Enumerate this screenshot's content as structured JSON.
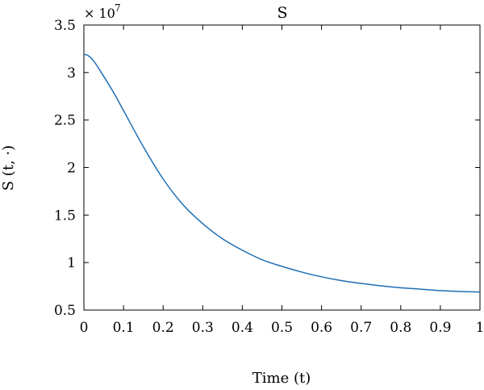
{
  "chart_data": {
    "type": "line",
    "title": "S",
    "xlabel": "Time (t)",
    "ylabel": "S (t, ·)",
    "y_multiplier_base": "× 10",
    "y_multiplier_exp": "7",
    "xlim": [
      0,
      1
    ],
    "ylim": [
      0.5,
      3.5
    ],
    "grid": false,
    "xticks": [
      0,
      0.1,
      0.2,
      0.3,
      0.4,
      0.5,
      0.6,
      0.7,
      0.8,
      0.9,
      1
    ],
    "xtick_labels": [
      "0",
      "0.1",
      "0.2",
      "0.3",
      "0.4",
      "0.5",
      "0.6",
      "0.7",
      "0.8",
      "0.9",
      "1"
    ],
    "yticks": [
      0.5,
      1,
      1.5,
      2,
      2.5,
      3,
      3.5
    ],
    "ytick_labels": [
      "0.5",
      "1",
      "1.5",
      "2",
      "2.5",
      "3",
      "3.5"
    ],
    "series": [
      {
        "color": "#1f6fb5",
        "x": [
          0,
          0.01,
          0.025,
          0.05,
          0.075,
          0.1,
          0.15,
          0.2,
          0.25,
          0.3,
          0.35,
          0.4,
          0.45,
          0.5,
          0.55,
          0.6,
          0.65,
          0.7,
          0.75,
          0.8,
          0.85,
          0.9,
          0.95,
          1
        ],
        "y": [
          3.19,
          3.18,
          3.12,
          2.96,
          2.79,
          2.6,
          2.22,
          1.88,
          1.61,
          1.41,
          1.25,
          1.13,
          1.03,
          0.96,
          0.9,
          0.85,
          0.81,
          0.78,
          0.755,
          0.735,
          0.72,
          0.705,
          0.695,
          0.69
        ]
      }
    ]
  }
}
